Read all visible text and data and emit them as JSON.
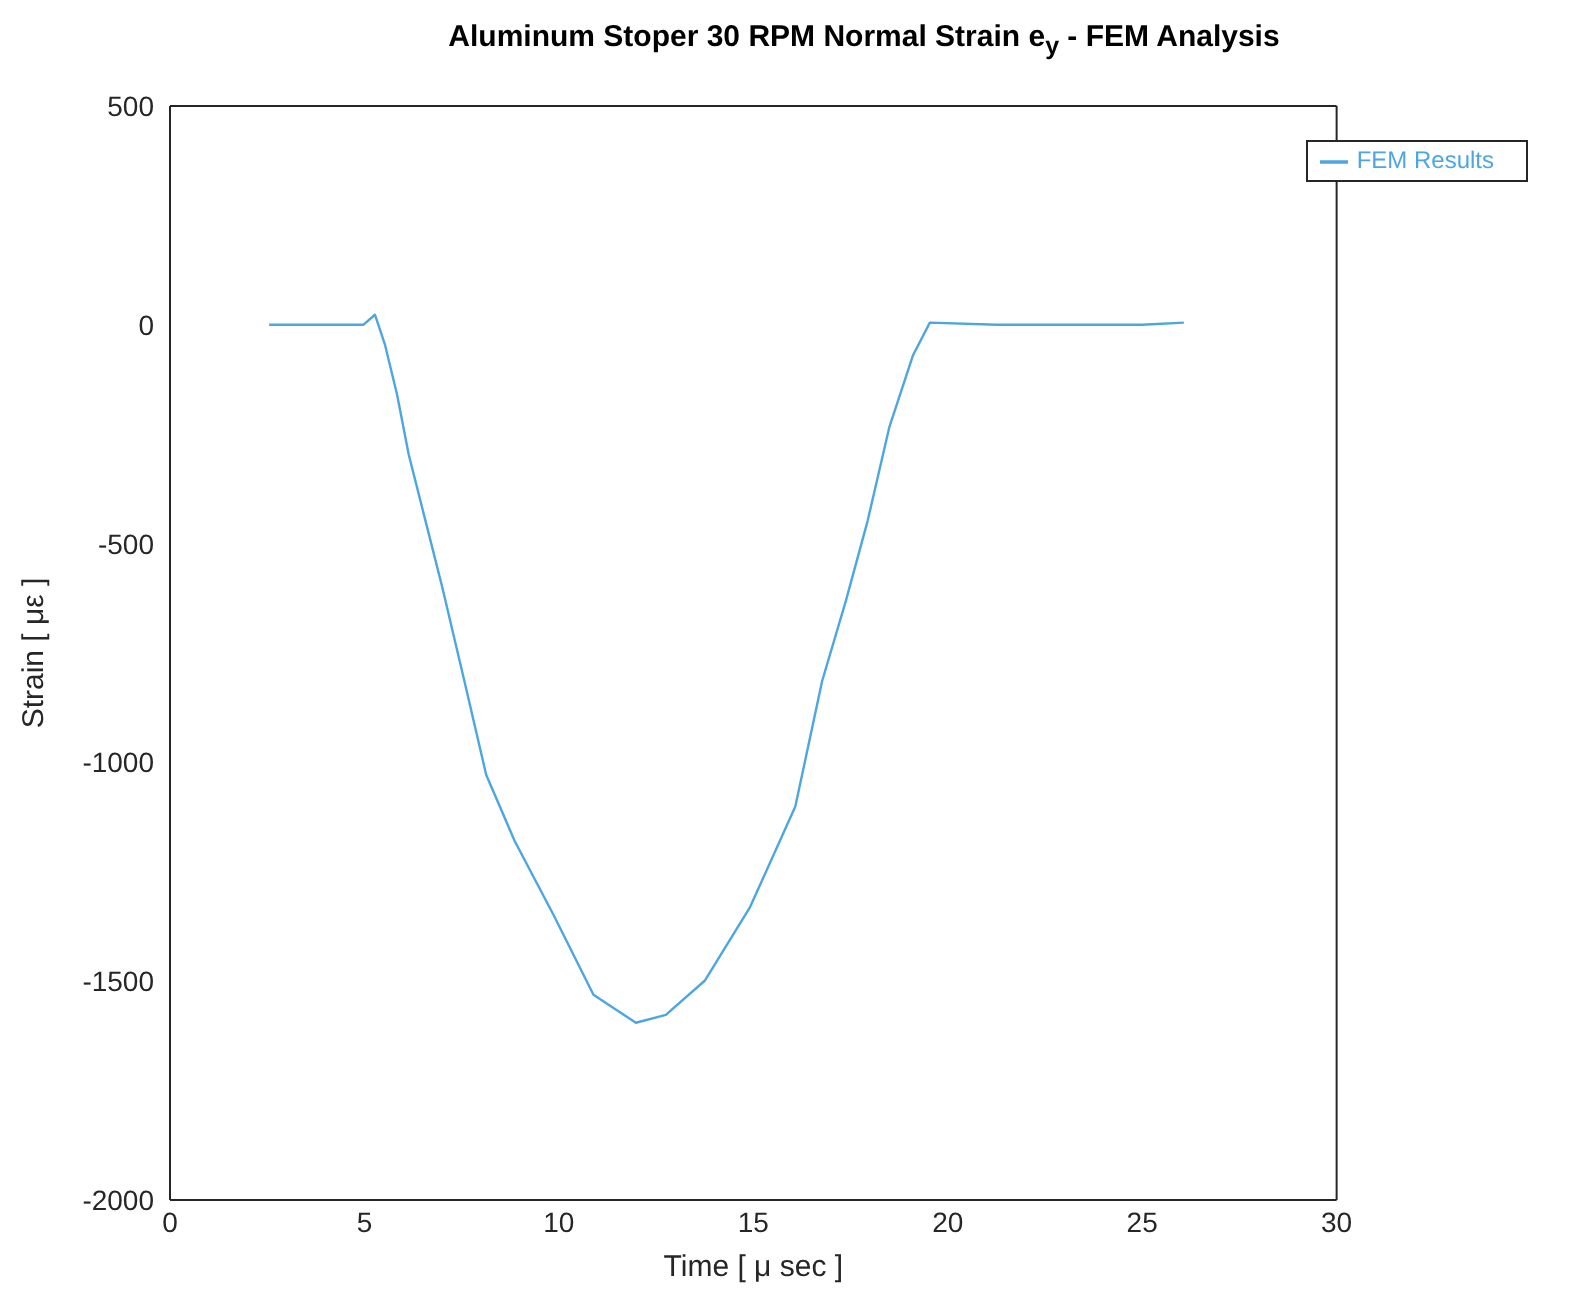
{
  "chart_data": {
    "type": "line",
    "title": "Aluminum Stoper 30 RPM Normal Strain e$_{y}$ - FEM Analysis",
    "xlabel": "Time [ μ sec ]",
    "ylabel": "Strain [ με ]",
    "xlim": [
      0,
      30
    ],
    "xticks": [
      0,
      5,
      10,
      15,
      20,
      25,
      30
    ],
    "ylim": [
      -2000,
      500
    ],
    "yticks": [
      -2000,
      -1500,
      -1000,
      -500,
      0,
      500
    ],
    "grid": false,
    "legend": "top right",
    "marker": "none",
    "line_style": "solid",
    "x": [
      2.55,
      4.97,
      5.27,
      5.53,
      5.84,
      6.14,
      6.57,
      7.0,
      7.57,
      8.13,
      8.86,
      9.86,
      10.89,
      11.98,
      12.75,
      13.75,
      14.92,
      16.08,
      16.77,
      17.38,
      17.94,
      18.5,
      19.11,
      19.54,
      21.27,
      24.99,
      26.07
    ],
    "series": [
      {
        "name": "FEM Results",
        "color": "#4da6e0",
        "values": [
          0,
          0,
          23,
          -46,
          -160,
          -297,
          -448,
          -599,
          -814,
          -1028,
          -1179,
          -1348,
          -1531,
          -1595,
          -1577,
          -1499,
          -1330,
          -1101,
          -814,
          -631,
          -448,
          -233,
          -69,
          5,
          0,
          0,
          5
        ]
      }
    ]
  }
}
